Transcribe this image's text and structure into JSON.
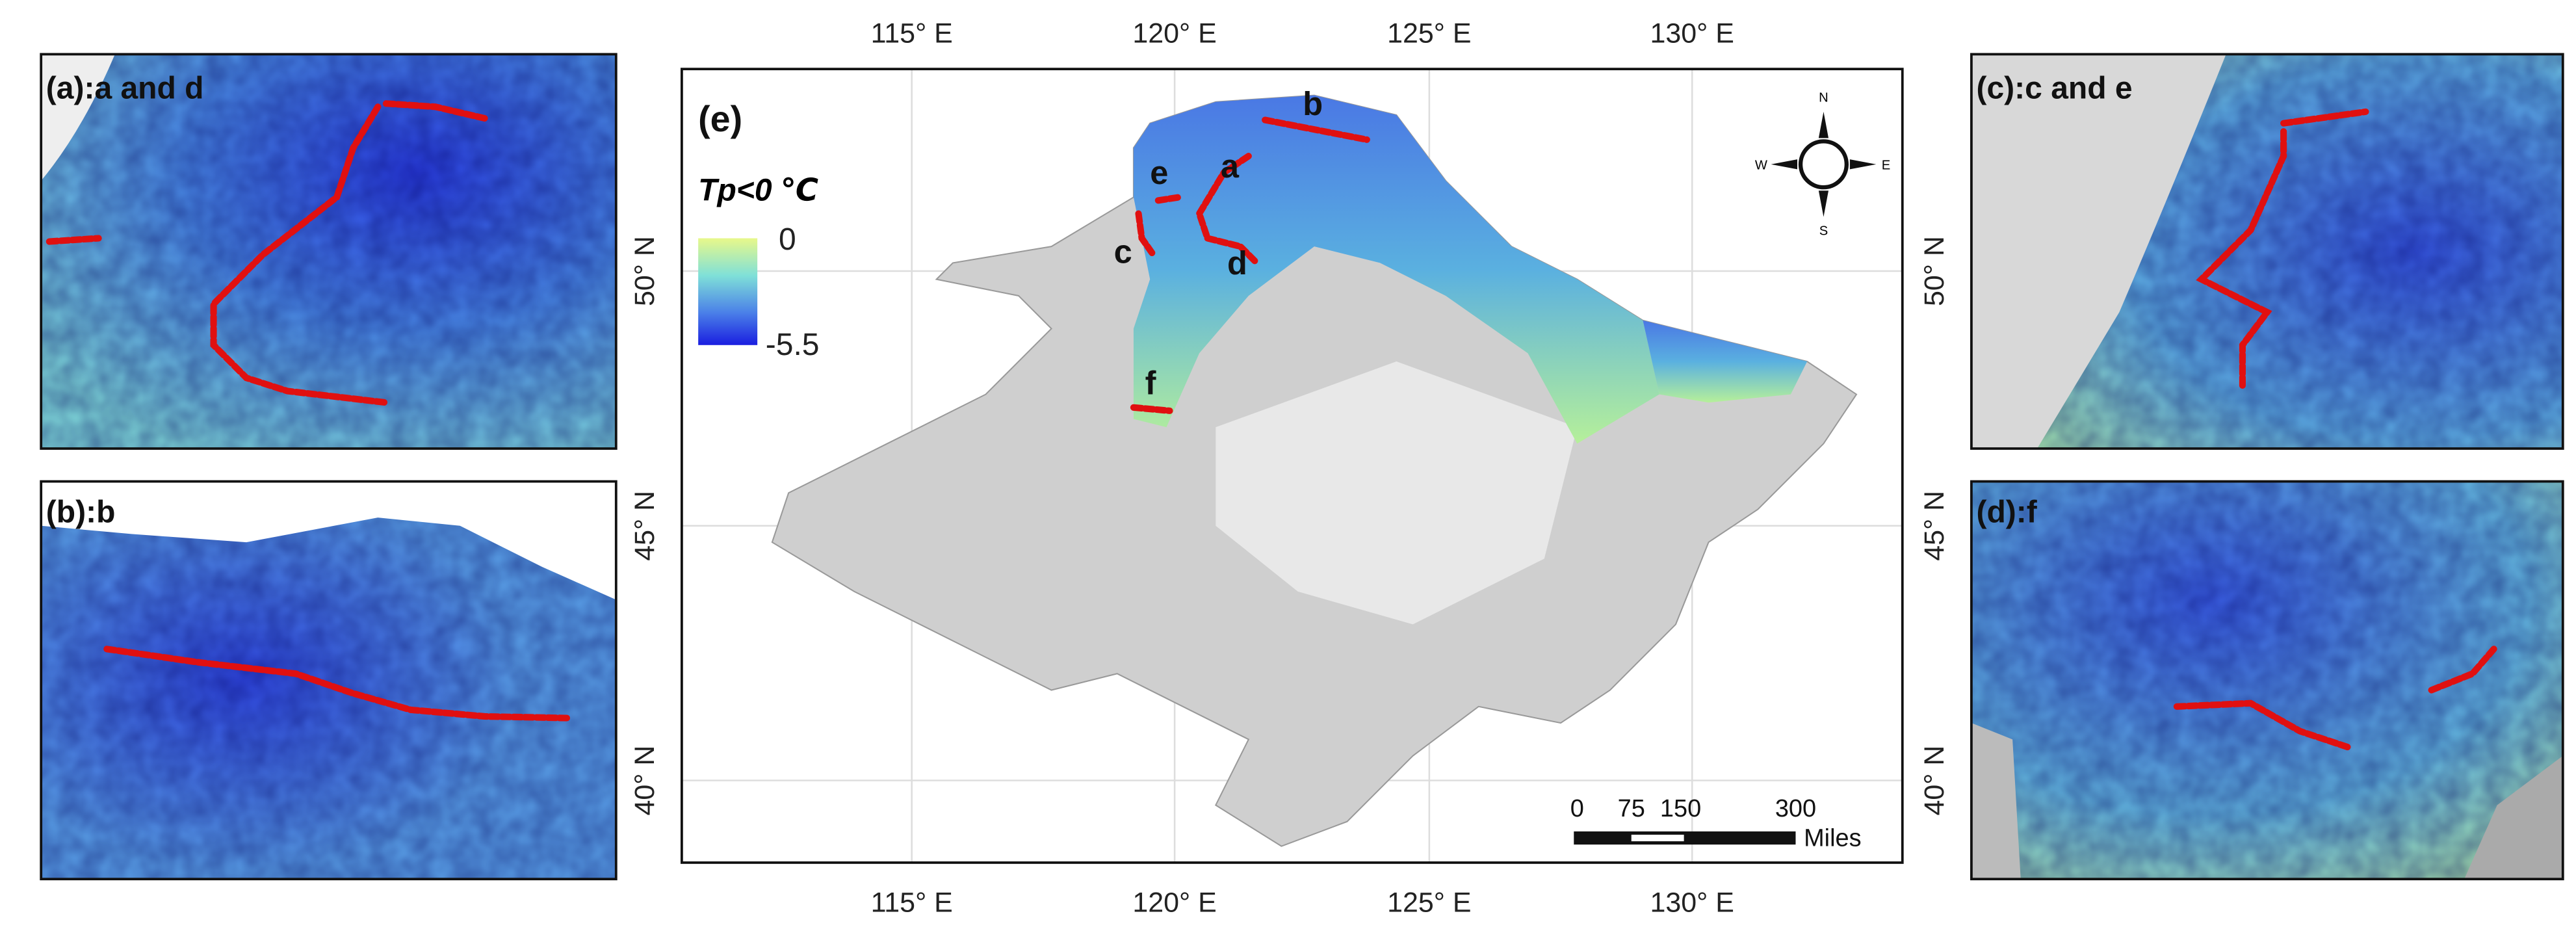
{
  "panels": [
    {
      "label": "(a):a and d"
    },
    {
      "label": "(b):b"
    },
    {
      "label": "(c):c and e"
    },
    {
      "label": "(d):f"
    }
  ],
  "main": {
    "label": "(e)",
    "lon_labels": [
      "115° E",
      "120° E",
      "125° E",
      "130° E"
    ],
    "lat_labels": [
      "50° N",
      "45° N",
      "40° N"
    ],
    "legend": {
      "title": "Tp<0 ℃",
      "max": "0",
      "min": "-5.5"
    },
    "scale_bar": {
      "ticks": [
        "0",
        "75",
        "150",
        "300"
      ],
      "unit": "Miles"
    },
    "compass": {
      "n": "N",
      "s": "S",
      "w": "W",
      "e": "E"
    },
    "sites": [
      "a",
      "b",
      "c",
      "d",
      "e",
      "f"
    ]
  }
}
